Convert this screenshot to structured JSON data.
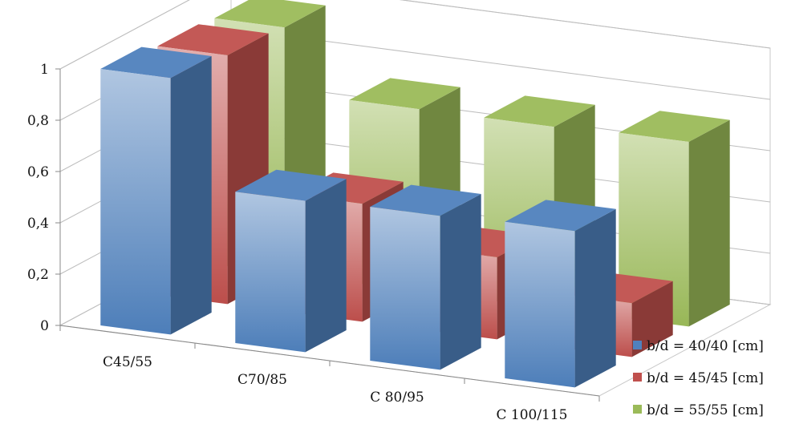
{
  "chart_data": {
    "type": "bar",
    "three_d": true,
    "title": "",
    "xlabel": "",
    "ylabel": "",
    "categories": [
      "C45/55",
      "C70/85",
      "C 80/95",
      "C 100/115"
    ],
    "series": [
      {
        "name": "b/d = 40/40 [cm]",
        "color": "#4f81bd",
        "values": [
          1.0,
          0.59,
          0.6,
          0.61
        ]
      },
      {
        "name": "b/d = 45/45 [cm]",
        "color": "#c0504d",
        "values": [
          0.97,
          0.46,
          0.32,
          0.21
        ]
      },
      {
        "name": "b/d = 55/55 [cm]",
        "color": "#9bbb59",
        "values": [
          0.96,
          0.71,
          0.71,
          0.72
        ]
      }
    ],
    "ylim": [
      0,
      1
    ],
    "yticks": [
      "0",
      "0,2",
      "0,4",
      "0,6",
      "0,8",
      "1"
    ],
    "grid": true,
    "legend": "right"
  }
}
